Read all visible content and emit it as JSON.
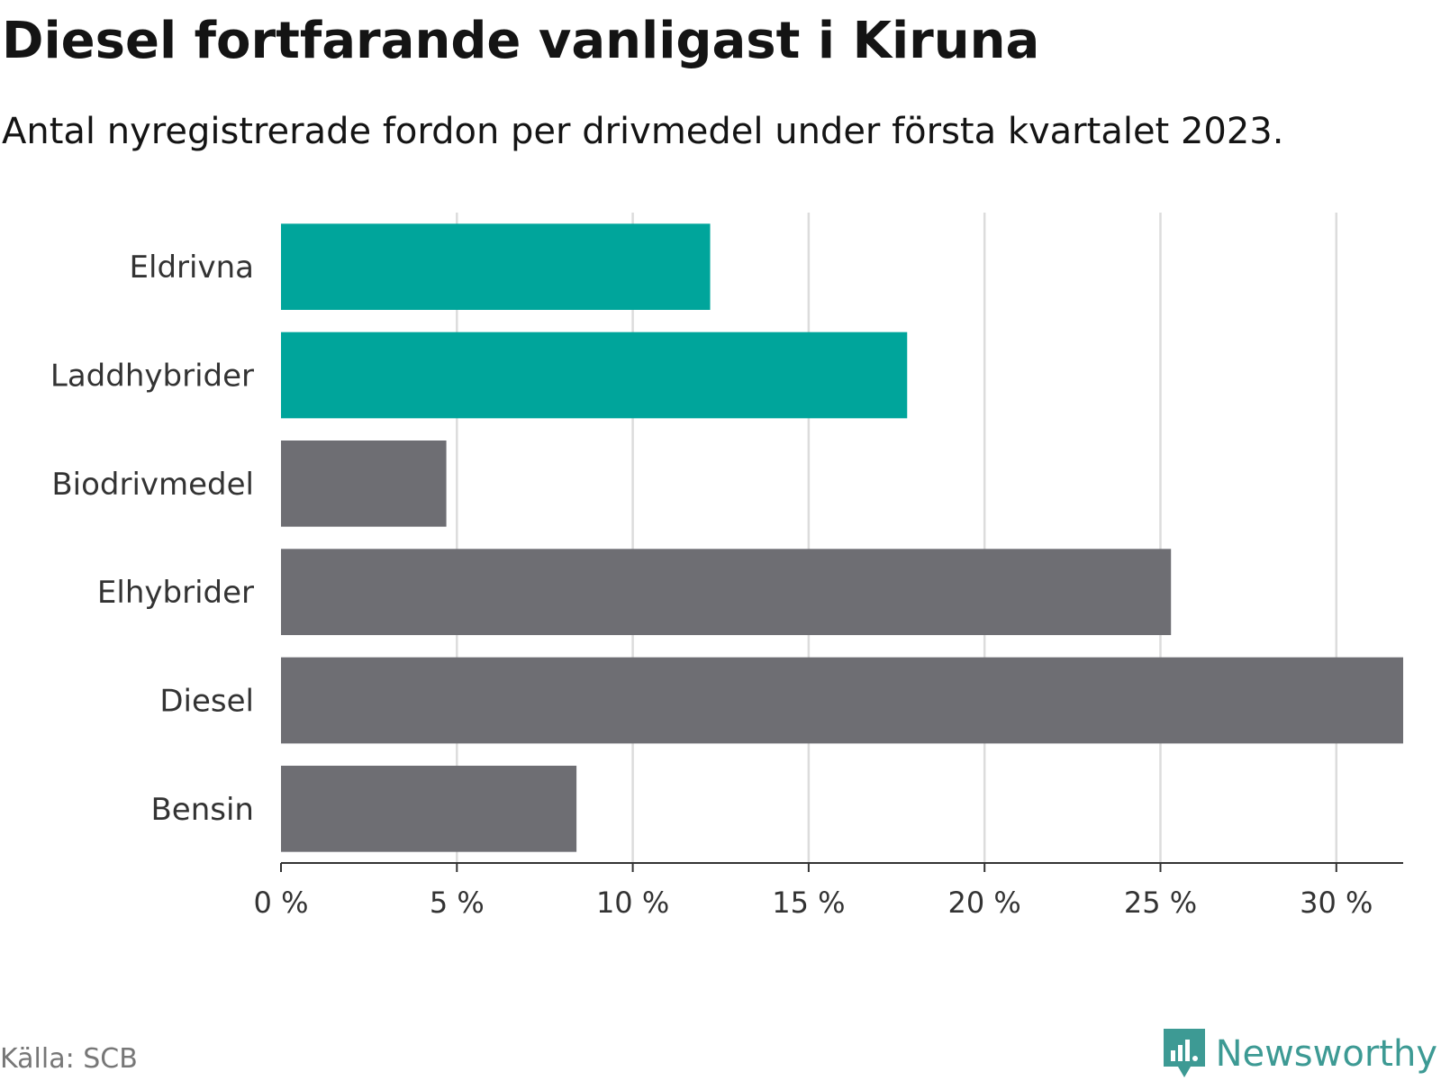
{
  "title": "Diesel fortfarande vanligast i Kiruna",
  "subtitle": "Antal nyregistrerade fordon per drivmedel under första kvartalet 2023.",
  "chart_data": {
    "type": "bar",
    "orientation": "horizontal",
    "categories": [
      "Eldrivna",
      "Laddhybrider",
      "Biodrivmedel",
      "Elhybrider",
      "Diesel",
      "Bensin"
    ],
    "values": [
      12.2,
      17.8,
      4.7,
      25.3,
      31.9,
      8.4
    ],
    "bar_colors": [
      "#00a59b",
      "#00a59b",
      "#6e6e73",
      "#6e6e73",
      "#6e6e73",
      "#6e6e73"
    ],
    "xlim": [
      0,
      31.9
    ],
    "xticks": [
      0,
      5,
      10,
      15,
      20,
      25,
      30
    ],
    "xtick_labels": [
      "0 %",
      "5 %",
      "10 %",
      "15 %",
      "20 %",
      "25 %",
      "30 %"
    ],
    "grid": true
  },
  "source": "Källa: SCB",
  "brand": {
    "name": "Newsworthy",
    "icon": "newsworthy-logo-icon",
    "color": "#3d9a94"
  }
}
